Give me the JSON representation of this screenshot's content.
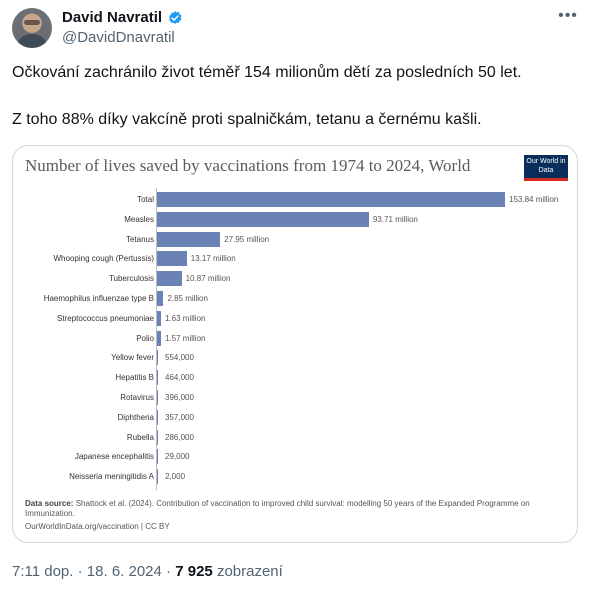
{
  "author": {
    "display_name": "David Navratil",
    "handle": "@DavidDnavratil"
  },
  "tweet": {
    "line1": "Očkování zachránilo život téměř 154 milionům dětí za posledních 50 let.",
    "line2": "Z toho 88% díky vakcíně proti spalničkám, tetanu a černému kašli."
  },
  "meta": {
    "time": "7:11 dop.",
    "separator1": "·",
    "date": "18. 6. 2024",
    "separator2": "·",
    "views": "7 925",
    "views_label": "zobrazení"
  },
  "colors": {
    "bar": "#6b82b4",
    "verified": "#1d9bf0",
    "logo_bg": "#0a2e5c",
    "logo_stripe": "#d42b21"
  },
  "icons": {
    "more": "more-horizontal-icon",
    "verified": "verified-badge-icon"
  },
  "chart_data": {
    "type": "bar",
    "orientation": "horizontal",
    "title": "Number of lives saved by vaccinations from 1974 to 2024, World",
    "logo_text": "Our World in Data",
    "categories": [
      "Total",
      "Measles",
      "Tetanus",
      "Whooping cough (Pertussis)",
      "Tuberculosis",
      "Haemophilus influenzae type B",
      "Streptococcus pneumoniae",
      "Polio",
      "Yellow fever",
      "Hepatitis B",
      "Rotavirus",
      "Diphtheria",
      "Rubella",
      "Japanese encephalitis",
      "Neisseria meningitidis A"
    ],
    "values": [
      153840000,
      93710000,
      27950000,
      13170000,
      10870000,
      2850000,
      1630000,
      1570000,
      554000,
      464000,
      396000,
      357000,
      286000,
      29000,
      2000
    ],
    "value_labels": [
      "153.84 million",
      "93.71 million",
      "27.95 million",
      "13.17 million",
      "10.87 million",
      "2.85 million",
      "1.63 million",
      "1.57 million",
      "554,000",
      "464,000",
      "396,000",
      "357,000",
      "286,000",
      "29,000",
      "2,000"
    ],
    "source_label": "Data source:",
    "source": "Shattock et al. (2024). Contribution of vaccination to improved child survival: modelling 50 years of the Expanded Programme on Immunization.",
    "footer": "OurWorldInData.org/vaccination | CC BY"
  }
}
